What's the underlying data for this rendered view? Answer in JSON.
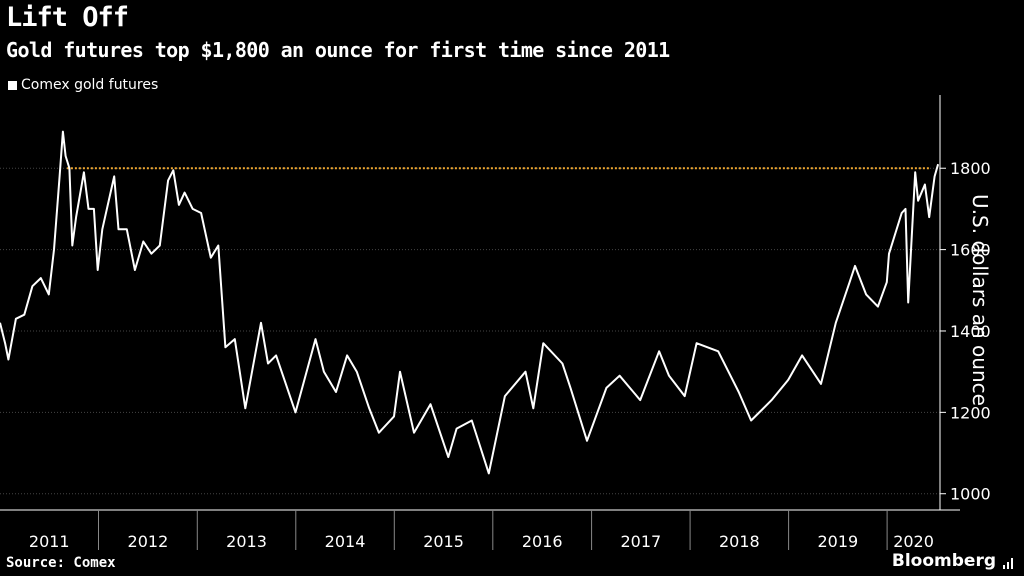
{
  "title": "Lift Off",
  "subtitle": "Gold futures top $1,800 an ounce for first time since 2011",
  "source": "Source: Comex",
  "brand": "Bloomberg",
  "colors": {
    "background": "#000000",
    "line": "#ffffff",
    "threshold": "#f0a830",
    "grid": "#444444"
  },
  "chart_data": {
    "type": "line",
    "title": "Lift Off",
    "subtitle": "Gold futures top $1,800 an ounce for first time since 2011",
    "ylabel": "U.S. dollars an ounce",
    "xlabel": "",
    "x_ticks": [
      "2011",
      "2012",
      "2013",
      "2014",
      "2015",
      "2016",
      "2017",
      "2018",
      "2019",
      "2020"
    ],
    "y_ticks": [
      1000,
      1200,
      1400,
      1600,
      1800
    ],
    "ylim": [
      960,
      1980
    ],
    "xlim": [
      "2011-01-01",
      "2020-07-15"
    ],
    "grid": true,
    "legend_position": "top-left",
    "threshold": {
      "value": 1800,
      "style": "dotted",
      "color": "#f0a830"
    },
    "series": [
      {
        "name": "Comex gold futures",
        "points": [
          [
            "2011-01-01",
            1420
          ],
          [
            "2011-01-20",
            1370
          ],
          [
            "2011-02-01",
            1330
          ],
          [
            "2011-03-01",
            1430
          ],
          [
            "2011-04-01",
            1440
          ],
          [
            "2011-05-01",
            1510
          ],
          [
            "2011-06-01",
            1530
          ],
          [
            "2011-07-01",
            1490
          ],
          [
            "2011-07-20",
            1600
          ],
          [
            "2011-08-10",
            1780
          ],
          [
            "2011-08-22",
            1890
          ],
          [
            "2011-09-01",
            1830
          ],
          [
            "2011-09-15",
            1800
          ],
          [
            "2011-09-26",
            1610
          ],
          [
            "2011-10-10",
            1680
          ],
          [
            "2011-11-08",
            1790
          ],
          [
            "2011-11-25",
            1700
          ],
          [
            "2011-12-15",
            1700
          ],
          [
            "2011-12-29",
            1550
          ],
          [
            "2012-01-15",
            1650
          ],
          [
            "2012-02-28",
            1780
          ],
          [
            "2012-03-15",
            1650
          ],
          [
            "2012-04-15",
            1650
          ],
          [
            "2012-05-15",
            1550
          ],
          [
            "2012-06-15",
            1620
          ],
          [
            "2012-07-15",
            1590
          ],
          [
            "2012-08-15",
            1610
          ],
          [
            "2012-09-15",
            1770
          ],
          [
            "2012-10-04",
            1795
          ],
          [
            "2012-10-25",
            1710
          ],
          [
            "2012-11-15",
            1740
          ],
          [
            "2012-12-15",
            1700
          ],
          [
            "2013-01-15",
            1690
          ],
          [
            "2013-02-20",
            1580
          ],
          [
            "2013-03-20",
            1610
          ],
          [
            "2013-04-15",
            1360
          ],
          [
            "2013-05-20",
            1380
          ],
          [
            "2013-06-28",
            1210
          ],
          [
            "2013-08-25",
            1420
          ],
          [
            "2013-09-20",
            1320
          ],
          [
            "2013-10-20",
            1340
          ],
          [
            "2013-12-31",
            1200
          ],
          [
            "2014-03-15",
            1380
          ],
          [
            "2014-04-15",
            1300
          ],
          [
            "2014-05-30",
            1250
          ],
          [
            "2014-07-10",
            1340
          ],
          [
            "2014-08-15",
            1300
          ],
          [
            "2014-09-30",
            1210
          ],
          [
            "2014-11-05",
            1150
          ],
          [
            "2014-12-31",
            1190
          ],
          [
            "2015-01-22",
            1300
          ],
          [
            "2015-03-15",
            1150
          ],
          [
            "2015-05-15",
            1220
          ],
          [
            "2015-07-20",
            1090
          ],
          [
            "2015-08-20",
            1160
          ],
          [
            "2015-10-15",
            1180
          ],
          [
            "2015-12-17",
            1050
          ],
          [
            "2016-02-15",
            1240
          ],
          [
            "2016-05-01",
            1300
          ],
          [
            "2016-05-30",
            1210
          ],
          [
            "2016-07-06",
            1370
          ],
          [
            "2016-09-15",
            1320
          ],
          [
            "2016-10-15",
            1260
          ],
          [
            "2016-12-15",
            1130
          ],
          [
            "2017-02-25",
            1260
          ],
          [
            "2017-04-15",
            1290
          ],
          [
            "2017-06-30",
            1230
          ],
          [
            "2017-09-08",
            1350
          ],
          [
            "2017-10-15",
            1290
          ],
          [
            "2017-12-12",
            1240
          ],
          [
            "2018-01-25",
            1370
          ],
          [
            "2018-04-15",
            1350
          ],
          [
            "2018-06-30",
            1250
          ],
          [
            "2018-08-15",
            1180
          ],
          [
            "2018-10-30",
            1230
          ],
          [
            "2018-12-31",
            1280
          ],
          [
            "2019-02-20",
            1340
          ],
          [
            "2019-05-01",
            1270
          ],
          [
            "2019-06-25",
            1420
          ],
          [
            "2019-08-15",
            1520
          ],
          [
            "2019-09-04",
            1560
          ],
          [
            "2019-10-15",
            1490
          ],
          [
            "2019-11-28",
            1460
          ],
          [
            "2019-12-31",
            1520
          ],
          [
            "2020-01-08",
            1590
          ],
          [
            "2020-02-24",
            1690
          ],
          [
            "2020-03-09",
            1700
          ],
          [
            "2020-03-19",
            1470
          ],
          [
            "2020-04-14",
            1790
          ],
          [
            "2020-04-25",
            1720
          ],
          [
            "2020-05-20",
            1760
          ],
          [
            "2020-06-05",
            1680
          ],
          [
            "2020-06-25",
            1780
          ],
          [
            "2020-07-08",
            1810
          ]
        ]
      }
    ]
  }
}
